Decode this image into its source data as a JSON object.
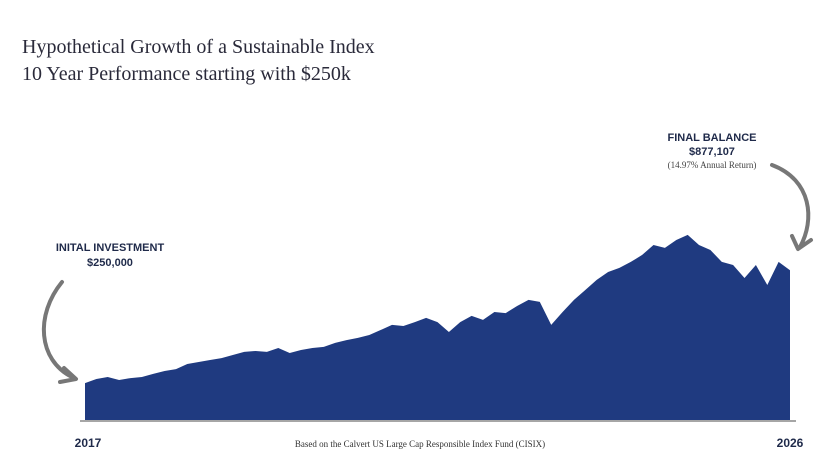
{
  "chart_data": {
    "type": "area",
    "title": "Hypothetical Growth of a Sustainable Index",
    "subtitle": "10 Year Performance starting with $250k",
    "x_labels": [
      "2017",
      "2026"
    ],
    "footnote": "Based on the Calvert US Large Cap Responsible Index Fund (CISIX)",
    "annotations": {
      "initial": {
        "label": "INITAL INVESTMENT",
        "value": "$250,000"
      },
      "final": {
        "label": "FINAL BALANCE",
        "value": "$877,107",
        "note": "(14.97% Annual Return)"
      }
    },
    "color": "#1f3a80",
    "ylim": [
      45000,
      1267000
    ],
    "values": [
      250000,
      273000,
      284000,
      267000,
      278000,
      284000,
      301000,
      317000,
      328000,
      356000,
      367000,
      378000,
      389000,
      406000,
      423000,
      428000,
      423000,
      445000,
      417000,
      434000,
      445000,
      451000,
      473000,
      489000,
      501000,
      517000,
      545000,
      573000,
      567000,
      589000,
      612000,
      589000,
      534000,
      589000,
      623000,
      601000,
      645000,
      639000,
      678000,
      712000,
      701000,
      573000,
      645000,
      712000,
      767000,
      823000,
      867000,
      890000,
      923000,
      962000,
      1017000,
      1001000,
      1045000,
      1073000,
      1017000,
      989000,
      923000,
      906000,
      834000,
      906000,
      795000,
      923000,
      877107
    ]
  }
}
